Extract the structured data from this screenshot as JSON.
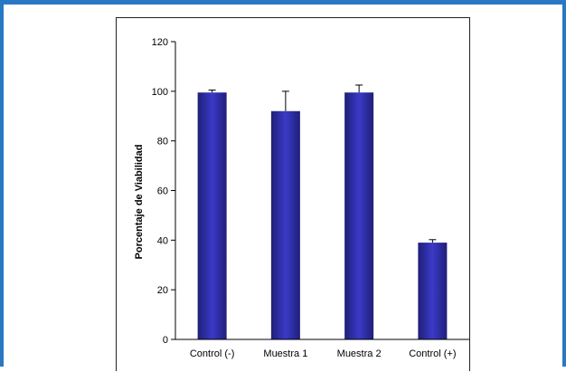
{
  "colors": {
    "frame": "#2878c4",
    "bar_edge": "#1f1f78",
    "bar_center": "#3a3ac8"
  },
  "chart_data": {
    "type": "bar",
    "categories": [
      "Control (-)",
      "Muestra 1",
      "Muestra 2",
      "Control (+)"
    ],
    "values": [
      99.5,
      92,
      99.5,
      39
    ],
    "errors": [
      1,
      8,
      3,
      1.2
    ],
    "title": "",
    "xlabel": "",
    "ylabel": "Porcentaje de Viabilidad",
    "ylim": [
      0,
      120
    ],
    "yticks": [
      0,
      20,
      40,
      60,
      80,
      100,
      120
    ],
    "ytick_labels": [
      "0",
      "20",
      "40",
      "60",
      "80",
      "100",
      "120"
    ],
    "grid": false,
    "legend": "none"
  }
}
